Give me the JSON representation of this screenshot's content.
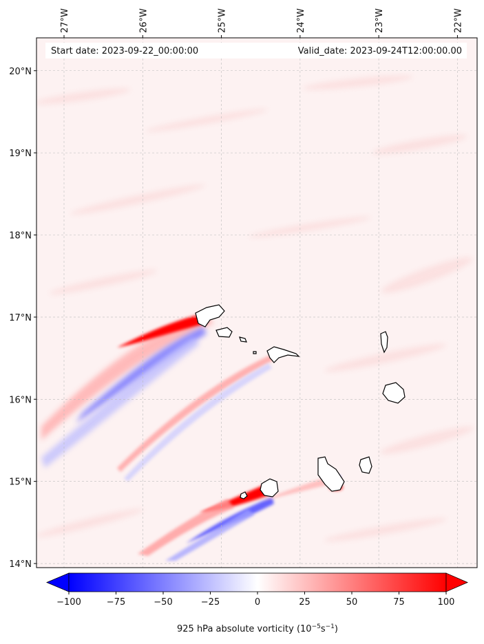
{
  "header": {
    "start_date": "Start date: 2023-09-22_00:00:00",
    "valid_date": "Valid_date: 2023-09-24T12:00:00.00"
  },
  "map": {
    "lon_ticks": [
      {
        "value": -27,
        "label": "27°W"
      },
      {
        "value": -26,
        "label": "26°W"
      },
      {
        "value": -25,
        "label": "25°W"
      },
      {
        "value": -24,
        "label": "24°W"
      },
      {
        "value": -23,
        "label": "23°W"
      },
      {
        "value": -22,
        "label": "22°W"
      }
    ],
    "lat_ticks": [
      {
        "value": 14,
        "label": "14°N"
      },
      {
        "value": 15,
        "label": "15°N"
      },
      {
        "value": 16,
        "label": "16°N"
      },
      {
        "value": 17,
        "label": "17°N"
      },
      {
        "value": 18,
        "label": "18°N"
      },
      {
        "value": 19,
        "label": "19°N"
      },
      {
        "value": 20,
        "label": "20°N"
      }
    ],
    "lon_range": [
      -27.35,
      -21.75
    ],
    "lat_range": [
      13.95,
      20.4
    ],
    "colors": {
      "background": "#fdf2f2",
      "positive": "#ff0000",
      "negative": "#0000ff",
      "coast": "#000000",
      "grid": "#bbbbbb"
    }
  },
  "colorbar": {
    "ticks": [
      {
        "value": -100,
        "label": "−100"
      },
      {
        "value": -75,
        "label": "−75"
      },
      {
        "value": -50,
        "label": "−50"
      },
      {
        "value": -25,
        "label": "−25"
      },
      {
        "value": 0,
        "label": "0"
      },
      {
        "value": 25,
        "label": "25"
      },
      {
        "value": 50,
        "label": "50"
      },
      {
        "value": 75,
        "label": "75"
      },
      {
        "value": 100,
        "label": "100"
      }
    ],
    "range": [
      -100,
      100
    ],
    "label_main": "925 hPa absolute vorticity (10",
    "label_exp1": "−5",
    "label_mid": "s",
    "label_exp2": "−1",
    "label_end": ")"
  }
}
